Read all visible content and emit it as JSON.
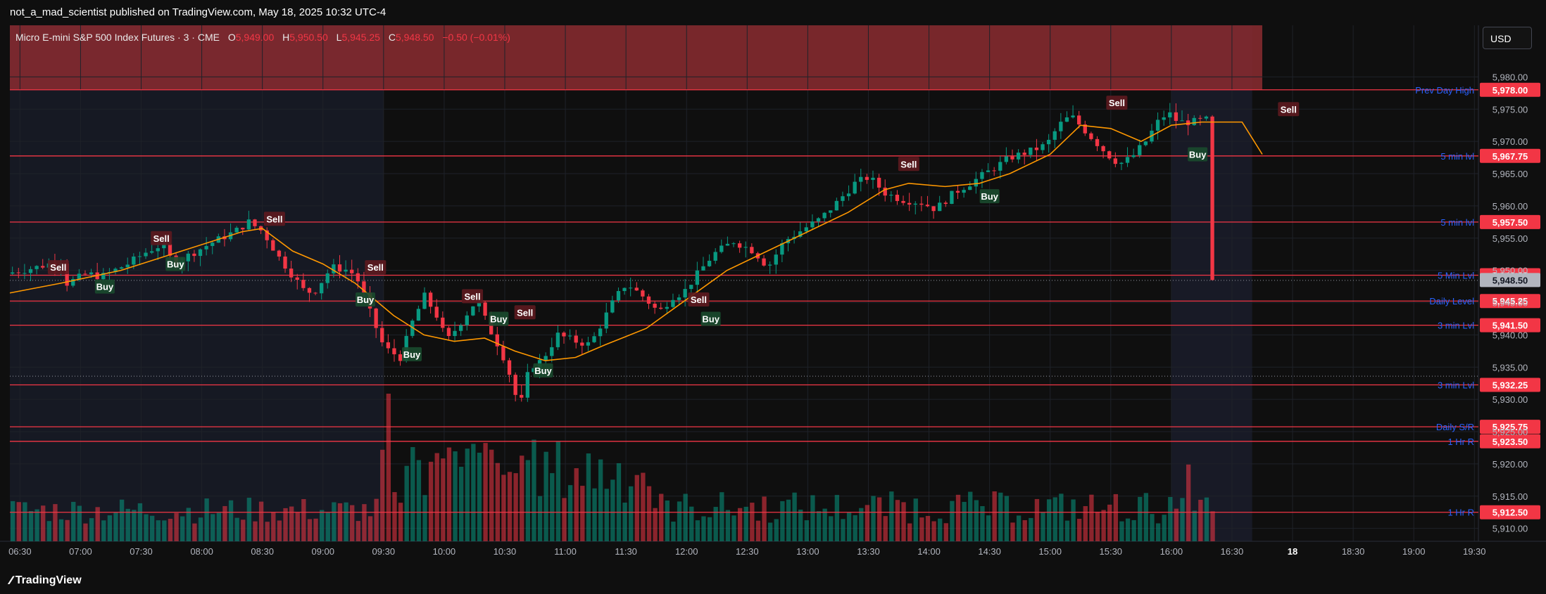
{
  "header": {
    "publish_line": "not_a_mad_scientist published on TradingView.com, May 18, 2025 10:32 UTC-4",
    "currency": "USD",
    "legend": {
      "symbol": "Micro E-mini S&P 500 Index Futures · 3 · CME",
      "open_label": "O",
      "open": "5,949.00",
      "high_label": "H",
      "high": "5,950.50",
      "low_label": "L",
      "low": "5,945.25",
      "close_label": "C",
      "close": "5,948.50",
      "change": "−0.50 (−0.01%)"
    }
  },
  "footer": {
    "brand": "TradingView"
  },
  "colors": {
    "up": "#089981",
    "down": "#f23645",
    "level_line": "#f23645",
    "level_text": "#2962ff",
    "ma": "#ff9800",
    "session_shade": "#1e2235",
    "top_band": "#8b2b30",
    "background": "#0f0f0f"
  },
  "chart_data": {
    "type": "candlestick",
    "ylim": [
      5908,
      5988
    ],
    "y_ticks": [
      "5,980.00",
      "5,975.00",
      "5,970.00",
      "5,965.00",
      "5,960.00",
      "5,955.00",
      "5,950.00",
      "5,945.00",
      "5,940.00",
      "5,935.00",
      "5,930.00",
      "5,925.00",
      "5,920.00",
      "5,915.00",
      "5,910.00"
    ],
    "y_tick_values": [
      5980,
      5975,
      5970,
      5965,
      5960,
      5955,
      5950,
      5945,
      5940,
      5935,
      5930,
      5925,
      5920,
      5915,
      5910
    ],
    "x_ticks": [
      "06:30",
      "07:00",
      "07:30",
      "08:00",
      "08:30",
      "09:00",
      "09:30",
      "10:00",
      "10:30",
      "11:00",
      "11:30",
      "12:00",
      "12:30",
      "13:00",
      "13:30",
      "14:00",
      "14:30",
      "15:00",
      "15:30",
      "16:00",
      "16:30",
      "18",
      "18:30",
      "19:00",
      "19:30"
    ],
    "x_tick_minutes": [
      390,
      420,
      450,
      480,
      510,
      540,
      570,
      600,
      630,
      660,
      690,
      720,
      750,
      780,
      810,
      840,
      870,
      900,
      930,
      960,
      990,
      1020,
      1050,
      1080,
      1110
    ],
    "x_domain_minutes": [
      385,
      1112
    ],
    "candle_start_minute": 385,
    "candle_interval_minutes": 3,
    "candle_count": 199,
    "current_price": 5948.5,
    "current_price_label": "5,948.50",
    "key_levels": [
      {
        "name": "Prev Day High",
        "price": 5978.0,
        "label": "5,978.00"
      },
      {
        "name": "5 min lvl",
        "price": 5967.75,
        "label": "5,967.75"
      },
      {
        "name": "5 min lvl",
        "price": 5957.5,
        "label": "5,957.50"
      },
      {
        "name": "5 Min Lvl",
        "price": 5949.25,
        "label": "5,949.25"
      },
      {
        "name": "Daily Level",
        "price": 5945.25,
        "label": "5,945.25"
      },
      {
        "name": "3 min Lvl",
        "price": 5941.5,
        "label": "5,941.50"
      },
      {
        "name": "3 min Lvl",
        "price": 5932.25,
        "label": "5,932.25"
      },
      {
        "name": "Daily S/R",
        "price": 5925.75,
        "label": "5,925.75"
      },
      {
        "name": "1 Hr R",
        "price": 5923.5,
        "label": "5,923.50"
      },
      {
        "name": "1 Hr R",
        "price": 5912.5,
        "label": "5,912.50"
      }
    ],
    "price_path": [
      [
        385,
        5949.5
      ],
      [
        400,
        5950.5
      ],
      [
        412,
        5951.5
      ],
      [
        415,
        5948
      ],
      [
        425,
        5949.5
      ],
      [
        432,
        5949
      ],
      [
        445,
        5951
      ],
      [
        455,
        5953
      ],
      [
        462,
        5954
      ],
      [
        468,
        5951
      ],
      [
        476,
        5952.5
      ],
      [
        488,
        5954.5
      ],
      [
        498,
        5956
      ],
      [
        505,
        5957.5
      ],
      [
        512,
        5956
      ],
      [
        520,
        5952
      ],
      [
        526,
        5949.5
      ],
      [
        532,
        5947
      ],
      [
        537,
        5946.5
      ],
      [
        546,
        5950.5
      ],
      [
        555,
        5950
      ],
      [
        560,
        5948
      ],
      [
        565,
        5943.5
      ],
      [
        572,
        5938
      ],
      [
        580,
        5936.5
      ],
      [
        586,
        5942
      ],
      [
        592,
        5946
      ],
      [
        598,
        5943
      ],
      [
        603,
        5939
      ],
      [
        610,
        5942
      ],
      [
        618,
        5945.5
      ],
      [
        624,
        5941
      ],
      [
        630,
        5937.5
      ],
      [
        634,
        5934
      ],
      [
        639,
        5928.5
      ],
      [
        644,
        5935
      ],
      [
        650,
        5936
      ],
      [
        658,
        5940
      ],
      [
        667,
        5939
      ],
      [
        674,
        5938.5
      ],
      [
        680,
        5942
      ],
      [
        686,
        5945.5
      ],
      [
        692,
        5948
      ],
      [
        700,
        5946
      ],
      [
        708,
        5943.5
      ],
      [
        715,
        5946
      ],
      [
        720,
        5946.5
      ],
      [
        726,
        5949
      ],
      [
        735,
        5952.5
      ],
      [
        745,
        5954.5
      ],
      [
        755,
        5953
      ],
      [
        762,
        5950.5
      ],
      [
        770,
        5954.5
      ],
      [
        780,
        5956.5
      ],
      [
        788,
        5958
      ],
      [
        796,
        5960.5
      ],
      [
        805,
        5963.5
      ],
      [
        812,
        5964.5
      ],
      [
        820,
        5962
      ],
      [
        828,
        5961
      ],
      [
        838,
        5960.5
      ],
      [
        845,
        5959.5
      ],
      [
        854,
        5962
      ],
      [
        862,
        5963.5
      ],
      [
        872,
        5965.5
      ],
      [
        882,
        5967.5
      ],
      [
        892,
        5968.5
      ],
      [
        900,
        5969.5
      ],
      [
        906,
        5972.5
      ],
      [
        912,
        5974
      ],
      [
        918,
        5972
      ],
      [
        924,
        5970
      ],
      [
        930,
        5968
      ],
      [
        936,
        5966.5
      ],
      [
        942,
        5967.5
      ],
      [
        949,
        5970
      ],
      [
        955,
        5973
      ],
      [
        960,
        5974.5
      ],
      [
        965,
        5973
      ],
      [
        972,
        5973
      ],
      [
        982,
        5973.5
      ],
      [
        989,
        5973
      ],
      [
        995,
        5971
      ],
      [
        997,
        5965
      ],
      [
        999,
        5958
      ],
      [
        1001,
        5953
      ],
      [
        1003,
        5946
      ],
      [
        1005,
        5948.5
      ]
    ],
    "moving_average": [
      [
        385,
        5946.5
      ],
      [
        410,
        5948
      ],
      [
        440,
        5950
      ],
      [
        470,
        5953
      ],
      [
        500,
        5956
      ],
      [
        510,
        5956.5
      ],
      [
        525,
        5953
      ],
      [
        540,
        5951
      ],
      [
        556,
        5948
      ],
      [
        575,
        5943
      ],
      [
        590,
        5940
      ],
      [
        605,
        5939
      ],
      [
        620,
        5939.5
      ],
      [
        635,
        5937.5
      ],
      [
        650,
        5936
      ],
      [
        665,
        5936.5
      ],
      [
        680,
        5938.5
      ],
      [
        700,
        5941
      ],
      [
        720,
        5945.5
      ],
      [
        740,
        5950
      ],
      [
        760,
        5953
      ],
      [
        780,
        5956
      ],
      [
        800,
        5959
      ],
      [
        818,
        5962.5
      ],
      [
        830,
        5963.5
      ],
      [
        848,
        5963
      ],
      [
        865,
        5963.5
      ],
      [
        880,
        5965
      ],
      [
        900,
        5968
      ],
      [
        915,
        5972.5
      ],
      [
        930,
        5972
      ],
      [
        945,
        5970
      ],
      [
        960,
        5972.5
      ],
      [
        975,
        5973
      ],
      [
        995,
        5973
      ],
      [
        1005,
        5968
      ]
    ],
    "signals": [
      {
        "type": "Sell",
        "minute": 409,
        "price": 5950.5
      },
      {
        "type": "Buy",
        "minute": 432,
        "price": 5947.5
      },
      {
        "type": "Sell",
        "minute": 460,
        "price": 5955.0
      },
      {
        "type": "Buy",
        "minute": 467,
        "price": 5951.0
      },
      {
        "type": "Sell",
        "minute": 516,
        "price": 5958.0
      },
      {
        "type": "Sell",
        "minute": 566,
        "price": 5950.5
      },
      {
        "type": "Buy",
        "minute": 561,
        "price": 5945.5
      },
      {
        "type": "Sell",
        "minute": 614,
        "price": 5946.0
      },
      {
        "type": "Buy",
        "minute": 584,
        "price": 5937.0
      },
      {
        "type": "Buy",
        "minute": 627,
        "price": 5942.5
      },
      {
        "type": "Sell",
        "minute": 640,
        "price": 5943.5
      },
      {
        "type": "Buy",
        "minute": 649,
        "price": 5934.5
      },
      {
        "type": "Sell",
        "minute": 726,
        "price": 5945.5
      },
      {
        "type": "Buy",
        "minute": 732,
        "price": 5942.5
      },
      {
        "type": "Sell",
        "minute": 830,
        "price": 5966.5
      },
      {
        "type": "Buy",
        "minute": 870,
        "price": 5961.5
      },
      {
        "type": "Sell",
        "minute": 933,
        "price": 5976.0
      },
      {
        "type": "Buy",
        "minute": 973,
        "price": 5968.0
      },
      {
        "type": "Sell",
        "minute": 1018,
        "price": 5975.0
      }
    ],
    "volume_spikes": [
      {
        "minute": 571,
        "relative": 1.0
      },
      {
        "minute": 568,
        "relative": 0.62
      },
      {
        "minute": 586,
        "relative": 0.55
      },
      {
        "minute": 613,
        "relative": 0.66
      },
      {
        "minute": 617,
        "relative": 0.6
      },
      {
        "minute": 640,
        "relative": 0.55
      },
      {
        "minute": 823,
        "relative": 0.28
      },
      {
        "minute": 967,
        "relative": 0.52
      },
      {
        "minute": 958,
        "relative": 0.3
      }
    ]
  }
}
